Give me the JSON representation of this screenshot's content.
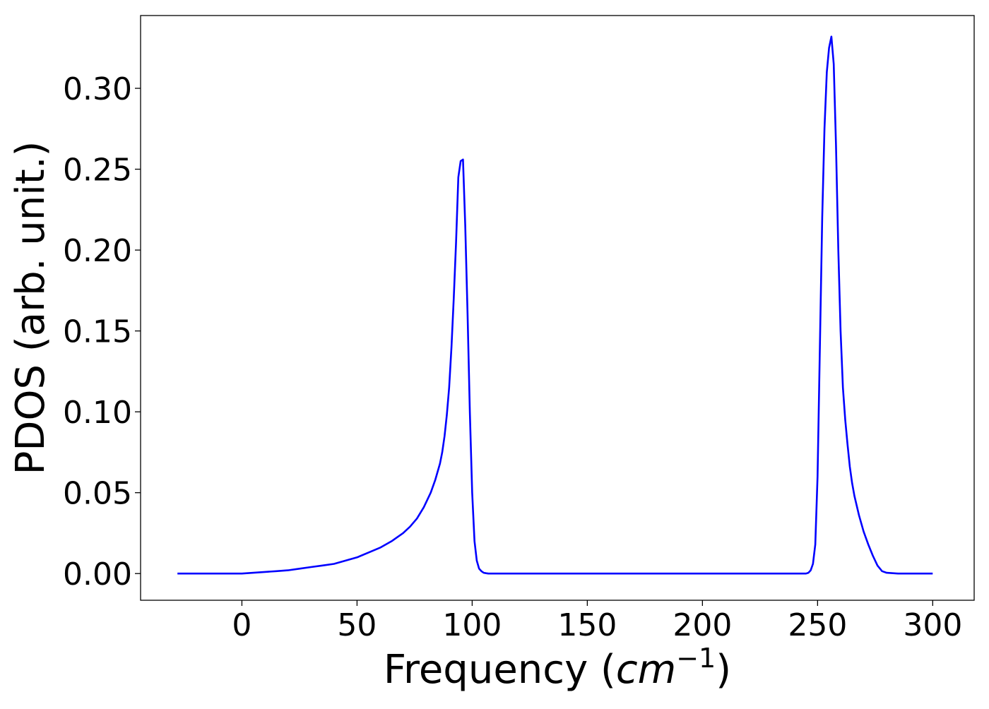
{
  "chart_data": {
    "type": "line",
    "title": "",
    "xlabel_prefix": "Frequency (",
    "xlabel_unit": "cm",
    "xlabel_exp": "−1",
    "xlabel_suffix": ")",
    "ylabel": "PDOS (arb. unit.)",
    "xlim": [
      -44,
      318
    ],
    "ylim": [
      -0.0165,
      0.345
    ],
    "xticks": [
      0,
      50,
      100,
      150,
      200,
      250,
      300
    ],
    "xtick_labels": [
      "0",
      "50",
      "100",
      "150",
      "200",
      "250",
      "300"
    ],
    "yticks": [
      0.0,
      0.05,
      0.1,
      0.15,
      0.2,
      0.25,
      0.3
    ],
    "ytick_labels": [
      "0.00",
      "0.05",
      "0.10",
      "0.15",
      "0.20",
      "0.25",
      "0.30"
    ],
    "grid": false,
    "color": "#0000ff",
    "series": [
      {
        "x": [
          -28,
          0,
          5,
          10,
          15,
          20,
          25,
          30,
          35,
          40,
          45,
          50,
          55,
          60,
          65,
          70,
          73,
          76,
          79,
          82,
          84,
          86,
          87,
          88,
          89,
          90,
          91,
          92,
          93,
          94,
          95,
          96,
          97,
          98,
          99,
          100,
          101,
          102,
          103,
          104,
          105,
          106,
          107,
          110,
          150,
          200,
          240,
          245,
          246,
          247,
          248,
          249,
          250,
          251,
          252,
          253,
          254,
          255,
          256,
          257,
          258,
          259,
          260,
          261,
          262,
          263,
          264,
          265,
          266,
          268,
          270,
          272,
          274,
          276,
          278,
          280,
          285,
          290,
          300
        ],
        "y": [
          0.0,
          0.0,
          0.0005,
          0.001,
          0.0015,
          0.002,
          0.003,
          0.004,
          0.005,
          0.006,
          0.008,
          0.01,
          0.013,
          0.016,
          0.02,
          0.025,
          0.029,
          0.034,
          0.041,
          0.05,
          0.058,
          0.068,
          0.075,
          0.085,
          0.098,
          0.115,
          0.14,
          0.17,
          0.205,
          0.245,
          0.255,
          0.256,
          0.215,
          0.16,
          0.1,
          0.05,
          0.02,
          0.008,
          0.003,
          0.0015,
          0.0005,
          0.0002,
          0.0,
          0.0,
          0.0,
          0.0,
          0.0,
          0.0,
          0.0005,
          0.002,
          0.006,
          0.018,
          0.06,
          0.14,
          0.22,
          0.275,
          0.31,
          0.325,
          0.332,
          0.315,
          0.265,
          0.2,
          0.15,
          0.115,
          0.095,
          0.08,
          0.066,
          0.056,
          0.048,
          0.036,
          0.026,
          0.018,
          0.011,
          0.005,
          0.0015,
          0.0005,
          0.0,
          0.0,
          0.0
        ]
      }
    ]
  }
}
